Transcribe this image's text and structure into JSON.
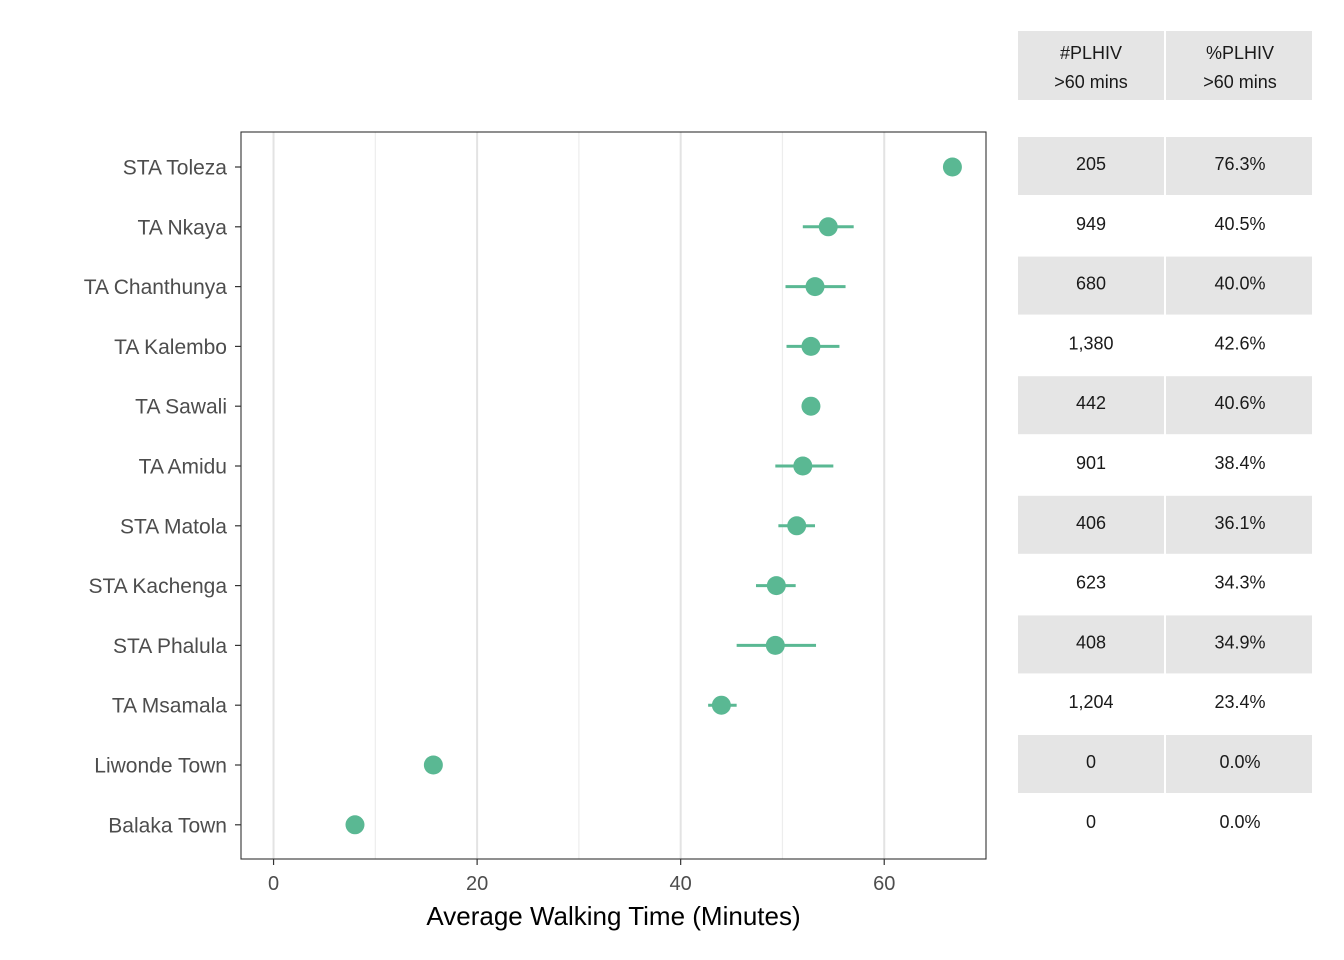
{
  "chart_data": {
    "type": "scatter",
    "subtype": "dot-with-error-bars",
    "xlabel": "Average Walking Time (Minutes)",
    "xlim": [
      -3.2,
      70
    ],
    "xticks": [
      0,
      20,
      40,
      60
    ],
    "grid": true,
    "categories": [
      "STA Toleza",
      "TA Nkaya",
      "TA Chanthunya",
      "TA Kalembo",
      "TA Sawali",
      "TA Amidu",
      "STA Matola",
      "STA Kachenga",
      "STA Phalula",
      "TA Msamala",
      "Liwonde Town",
      "Balaka Town"
    ],
    "points": [
      {
        "label": "STA Toleza",
        "value": 66.7,
        "low": null,
        "high": null
      },
      {
        "label": "TA Nkaya",
        "value": 54.5,
        "low": 52.0,
        "high": 57.0
      },
      {
        "label": "TA Chanthunya",
        "value": 53.2,
        "low": 50.3,
        "high": 56.2
      },
      {
        "label": "TA Kalembo",
        "value": 52.8,
        "low": 50.4,
        "high": 55.6
      },
      {
        "label": "TA Sawali",
        "value": 52.8,
        "low": null,
        "high": null
      },
      {
        "label": "TA Amidu",
        "value": 52.0,
        "low": 49.3,
        "high": 55.0
      },
      {
        "label": "STA Matola",
        "value": 51.4,
        "low": 49.6,
        "high": 53.2
      },
      {
        "label": "STA Kachenga",
        "value": 49.4,
        "low": 47.4,
        "high": 51.3
      },
      {
        "label": "STA Phalula",
        "value": 49.3,
        "low": 45.5,
        "high": 53.3
      },
      {
        "label": "TA Msamala",
        "value": 44.0,
        "low": 42.7,
        "high": 45.5
      },
      {
        "label": "Liwonde Town",
        "value": 15.7,
        "low": null,
        "high": null
      },
      {
        "label": "Balaka Town",
        "value": 8.0,
        "low": null,
        "high": null
      }
    ],
    "point_color": "#5ab893"
  },
  "table": {
    "headers": [
      {
        "line1": "#PLHIV",
        "line2": ">60 mins"
      },
      {
        "line1": "%PLHIV",
        "line2": ">60 mins"
      }
    ],
    "rows": [
      {
        "count": "205",
        "pct": "76.3%"
      },
      {
        "count": "949",
        "pct": "40.5%"
      },
      {
        "count": "680",
        "pct": "40.0%"
      },
      {
        "count": "1,380",
        "pct": "42.6%"
      },
      {
        "count": "442",
        "pct": "40.6%"
      },
      {
        "count": "901",
        "pct": "38.4%"
      },
      {
        "count": "406",
        "pct": "36.1%"
      },
      {
        "count": "623",
        "pct": "34.3%"
      },
      {
        "count": "408",
        "pct": "34.9%"
      },
      {
        "count": "1,204",
        "pct": "23.4%"
      },
      {
        "count": "0",
        "pct": "0.0%"
      },
      {
        "count": "0",
        "pct": "0.0%"
      }
    ],
    "stripe_color": "#e5e5e5"
  }
}
